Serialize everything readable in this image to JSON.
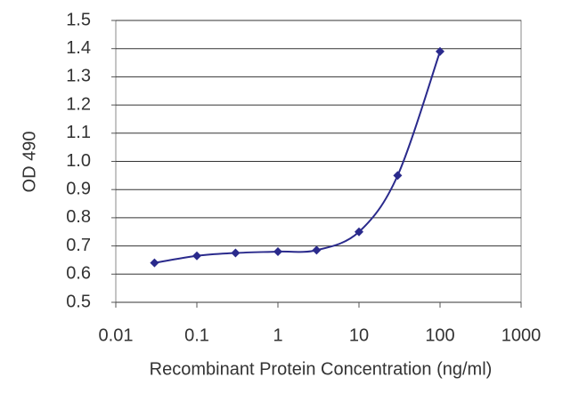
{
  "chart_data": {
    "type": "line",
    "xscale": "log",
    "grid": true,
    "color": "#2a2a8c",
    "x_label": "Recombinant Protein Concentration (ng/ml)",
    "y_label": "OD 490",
    "x": [
      0.03,
      0.1,
      0.3,
      1,
      3,
      10,
      30,
      100
    ],
    "values": [
      0.64,
      0.665,
      0.675,
      0.68,
      0.685,
      0.75,
      0.95,
      1.39
    ],
    "xlim": [
      0.01,
      1000
    ],
    "xticks": [
      0.01,
      0.1,
      1,
      10,
      100,
      1000
    ],
    "ylim": [
      0.5,
      1.5
    ],
    "yticks": [
      0.5,
      0.6,
      0.7,
      0.8,
      0.9,
      {
        "value": 1,
        "label": "1.0"
      },
      1.1,
      1.2,
      1.3,
      1.4,
      1.5
    ]
  }
}
